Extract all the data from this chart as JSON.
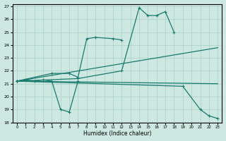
{
  "xlabel": "Humidex (Indice chaleur)",
  "background_color": "#cce8e0",
  "grid_color": "#aacfc8",
  "line_color": "#1a7a6e",
  "xlim": [
    -0.5,
    23.5
  ],
  "ylim": [
    18,
    27.2
  ],
  "xticks": [
    0,
    1,
    2,
    3,
    4,
    5,
    6,
    7,
    8,
    9,
    10,
    11,
    12,
    13,
    14,
    15,
    16,
    17,
    18,
    19,
    20,
    21,
    22,
    23
  ],
  "yticks": [
    18,
    19,
    20,
    21,
    22,
    23,
    24,
    25,
    26,
    27
  ],
  "line1_x": [
    0,
    1,
    2,
    3,
    4,
    5,
    6,
    7
  ],
  "line1_y": [
    21.2,
    21.3,
    21.2,
    21.3,
    21.2,
    19.0,
    18.8,
    21.2
  ],
  "line2_x": [
    0,
    4,
    6,
    7,
    8,
    9,
    11,
    12
  ],
  "line2_y": [
    21.2,
    21.8,
    21.8,
    21.5,
    24.5,
    24.6,
    24.5,
    24.4
  ],
  "line3_x": [
    0,
    7,
    12,
    14,
    15,
    16,
    17,
    18
  ],
  "line3_y": [
    21.2,
    21.4,
    22.0,
    26.9,
    26.3,
    26.3,
    26.6,
    25.0
  ],
  "line4_x": [
    0,
    19,
    21,
    22,
    23
  ],
  "line4_y": [
    21.2,
    20.8,
    19.0,
    18.5,
    18.3
  ],
  "line5_x": [
    0,
    23
  ],
  "line5_y": [
    21.2,
    21.0
  ],
  "line6_x": [
    0,
    23
  ],
  "line6_y": [
    21.2,
    23.8
  ]
}
